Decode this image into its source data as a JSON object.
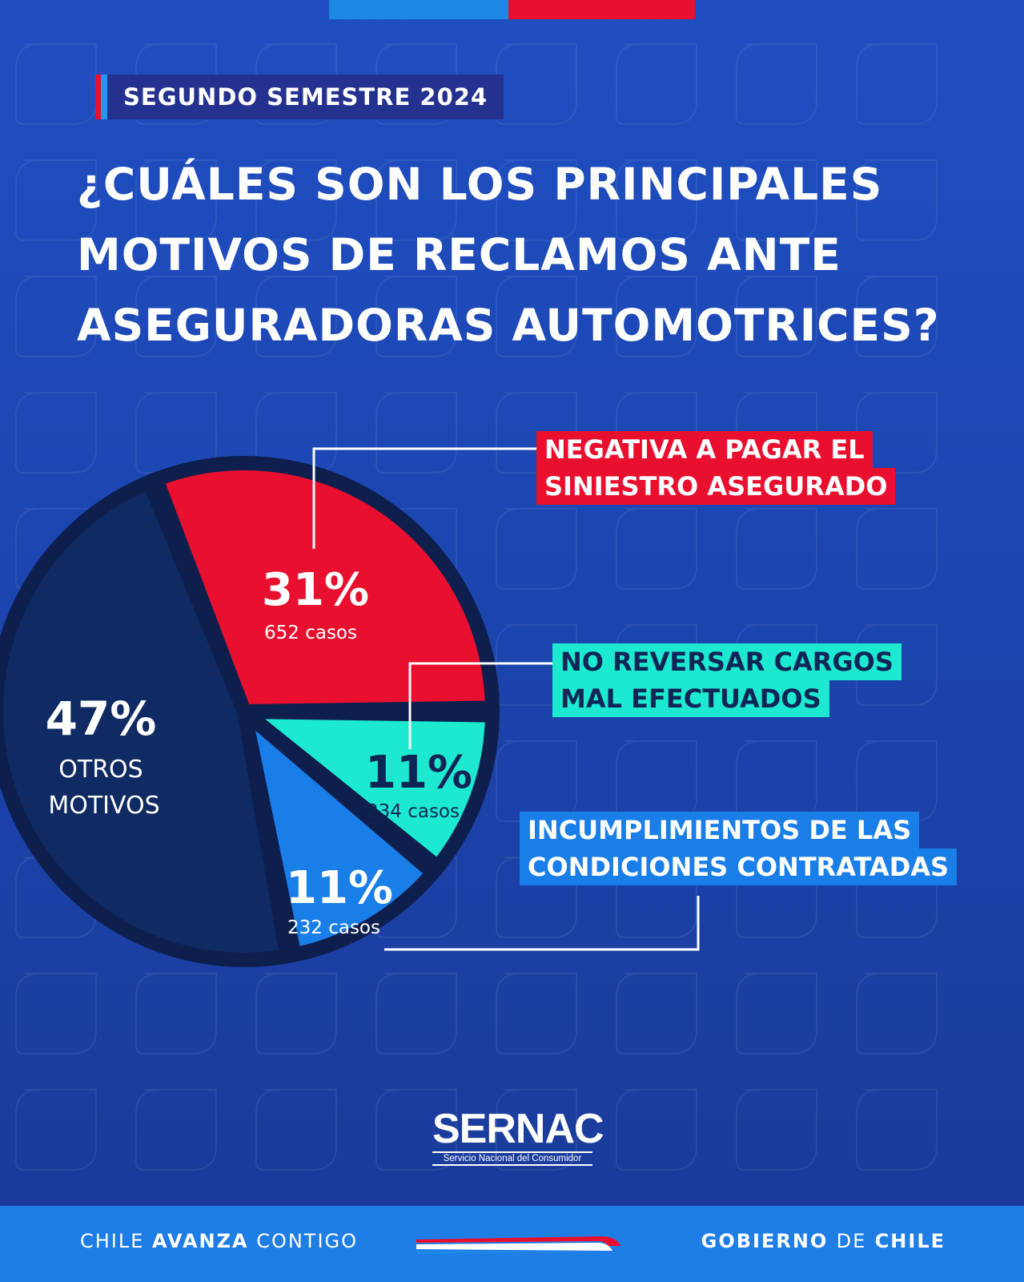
{
  "badge": {
    "text": "SEGUNDO SEMESTRE 2024"
  },
  "title": {
    "line1": "¿CUÁLES SON LOS PRINCIPALES",
    "line2": "MOTIVOS DE RECLAMOS ANTE",
    "line3": "ASEGURADORAS AUTOMOTRICES?"
  },
  "chart_data": {
    "type": "pie",
    "slices": [
      {
        "id": "otros",
        "percent": 47,
        "percent_label": "47%",
        "label_lines": [
          "OTROS",
          "MOTIVOS"
        ],
        "color": "#102a63"
      },
      {
        "id": "negativa",
        "percent": 31,
        "percent_label": "31%",
        "cases": 652,
        "cases_label": "652 casos",
        "category_lines": [
          "NEGATIVA A PAGAR EL",
          "SINIESTRO ASEGURADO"
        ],
        "color": "#e8102e"
      },
      {
        "id": "reversar",
        "percent": 11,
        "percent_label": "11%",
        "cases": 234,
        "cases_label": "234 casos",
        "category_lines": [
          "NO REVERSAR CARGOS",
          "MAL EFECTUADOS"
        ],
        "color": "#1de9d0"
      },
      {
        "id": "incumplimientos",
        "percent": 11,
        "percent_label": "11%",
        "cases": 232,
        "cases_label": "232 casos",
        "category_lines": [
          "INCUMPLIMIENTOS DE LAS",
          "CONDICIONES CONTRATADAS"
        ],
        "color": "#1a7ee8"
      }
    ]
  },
  "logo": {
    "name": "SERNAC",
    "subtitle": "Servicio Nacional del Consumidor"
  },
  "footer": {
    "left_a": "CHILE ",
    "left_b": "AVANZA",
    "left_c": " CONTIGO",
    "right_a": "GOBIERNO ",
    "right_b": "DE",
    "right_c": " CHILE"
  },
  "colors": {
    "background": "#1f4fc2",
    "accent_red": "#e8102e",
    "accent_blue": "#1e88e5",
    "footer": "#1f7de6"
  }
}
